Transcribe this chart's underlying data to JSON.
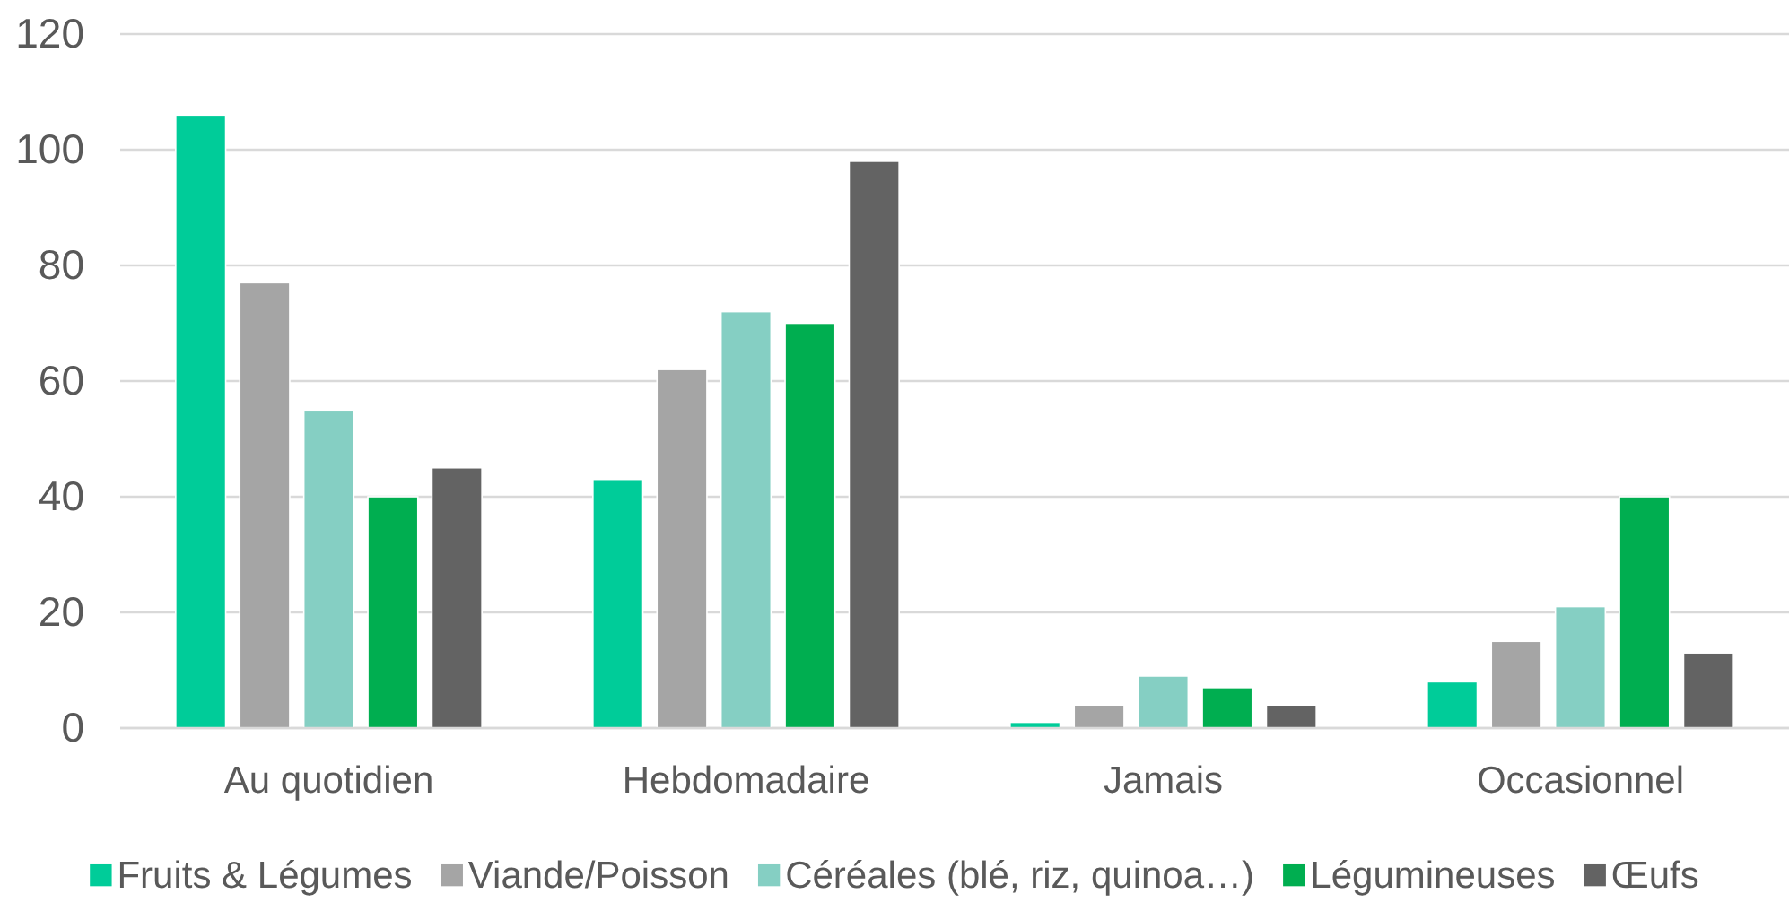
{
  "chart_data": {
    "type": "bar",
    "categories": [
      "Au quotidien",
      "Hebdomadaire",
      "Jamais",
      "Occasionnel"
    ],
    "series": [
      {
        "name": "Fruits & Légumes",
        "color": "#00cc99",
        "values": [
          106,
          43,
          1,
          8
        ]
      },
      {
        "name": "Viande/Poisson",
        "color": "#a5a5a5",
        "values": [
          77,
          62,
          4,
          15
        ]
      },
      {
        "name": "Céréales (blé, riz, quinoa…)",
        "color": "#85cfc3",
        "values": [
          55,
          72,
          9,
          21
        ]
      },
      {
        "name": "Légumineuses",
        "color": "#00ae50",
        "values": [
          40,
          70,
          7,
          40
        ]
      },
      {
        "name": "Œufs",
        "color": "#636363",
        "values": [
          45,
          98,
          4,
          13
        ]
      }
    ],
    "ylim": [
      0,
      120
    ],
    "yticks": [
      0,
      20,
      40,
      60,
      80,
      100,
      120
    ],
    "grid": "y",
    "legend": "bottom"
  }
}
